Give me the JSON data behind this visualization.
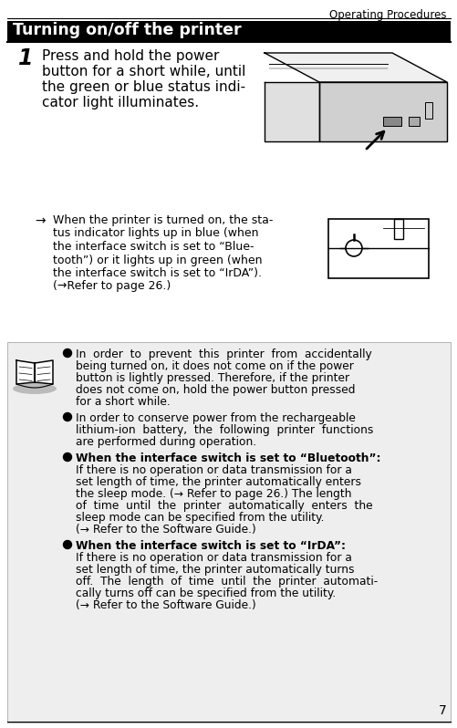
{
  "header_right": "Operating Procedures",
  "section_title": "Turning on/off the printer",
  "step_number": "1",
  "step_lines": [
    "Press and hold the power",
    "button for a short while, until",
    "the green or blue status indi-",
    "cator light illuminates."
  ],
  "arrow_lines": [
    "When the printer is turned on, the sta-",
    "tus indicator lights up in blue (when",
    "the interface switch is set to “Blue-",
    "tooth”) or it lights up in green (when",
    "the interface switch is set to “IrDA”).",
    "(→Refer to page 26.)"
  ],
  "bullet_texts": [
    [
      "In  order  to  prevent  this  printer  from  accidentally",
      "being turned on, it does not come on if the power",
      "button is lightly pressed. Therefore, if the printer",
      "does not come on, hold the power button pressed",
      "for a short while."
    ],
    [
      "In order to conserve power from the rechargeable",
      "lithium-ion  battery,  the  following  printer  functions",
      "are performed during operation."
    ],
    [
      "When the interface switch is set to “Bluetooth”:",
      "If there is no operation or data transmission for a",
      "set length of time, the printer automatically enters",
      "the sleep mode. (→ Refer to page 26.) The length",
      "of  time  until  the  printer  automatically  enters  the",
      "sleep mode can be specified from the utility.",
      "(→ Refer to the Software Guide.)"
    ],
    [
      "When the interface switch is set to “IrDA”:",
      "If there is no operation or data transmission for a",
      "set length of time, the printer automatically turns",
      "off.  The  length  of  time  until  the  printer  automati-",
      "cally turns off can be specified from the utility.",
      "(→ Refer to the Software Guide.)"
    ]
  ],
  "bullet_bold_first": [
    false,
    false,
    true,
    true
  ],
  "page_number": "7",
  "bg_color": "#ffffff",
  "text_color": "#000000",
  "note_box_color": "#eeeeee"
}
